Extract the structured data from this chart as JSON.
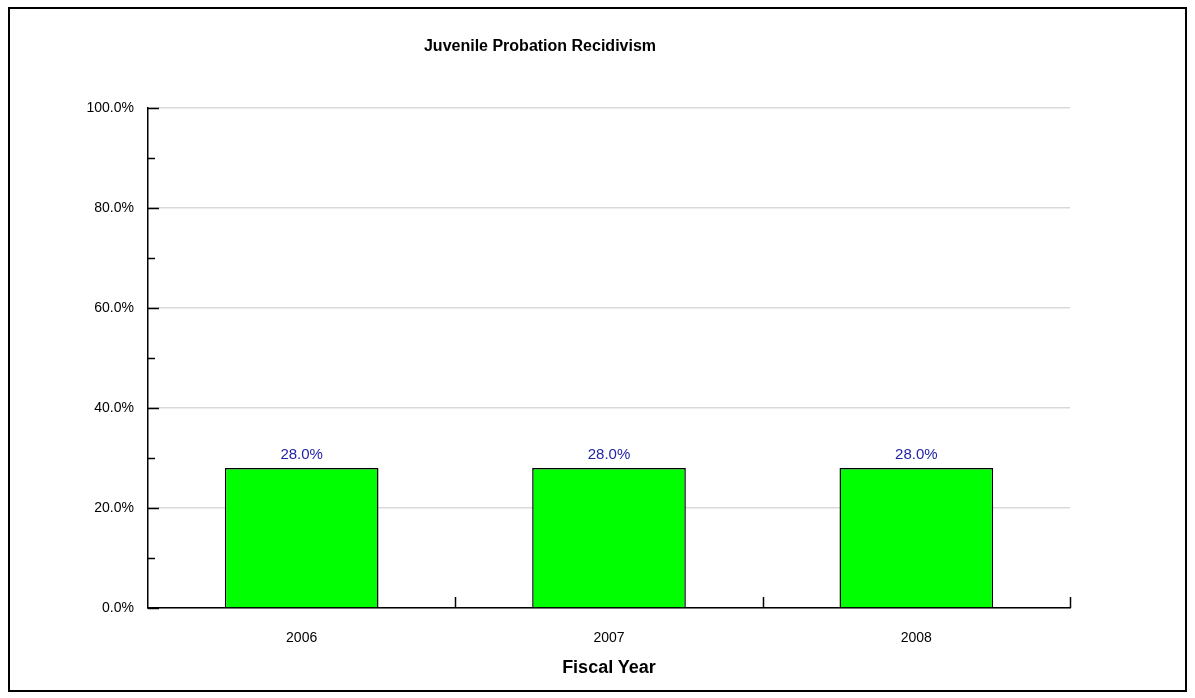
{
  "chart_data": {
    "type": "bar",
    "title": "Juvenile Probation Recidivism",
    "xlabel": "Fiscal Year",
    "categories": [
      "2006",
      "2007",
      "2008"
    ],
    "values": [
      28,
      28,
      28
    ],
    "color": "#00ff00",
    "value_labels": [
      "28.0%",
      "28.0%",
      "28.0%"
    ],
    "ylim": [
      0,
      100
    ],
    "yticks": [
      {
        "value": 0,
        "label": "0.0%"
      },
      {
        "value": 10,
        "label": null
      },
      {
        "value": 20,
        "label": "20.0%"
      },
      {
        "value": 30,
        "label": null
      },
      {
        "value": 40,
        "label": "40.0%"
      },
      {
        "value": 50,
        "label": null
      },
      {
        "value": 60,
        "label": "60.0%"
      },
      {
        "value": 70,
        "label": null
      },
      {
        "value": 80,
        "label": "80.0%"
      },
      {
        "value": 90,
        "label": null
      },
      {
        "value": 100,
        "label": "100.0%"
      }
    ],
    "grid": "y"
  }
}
